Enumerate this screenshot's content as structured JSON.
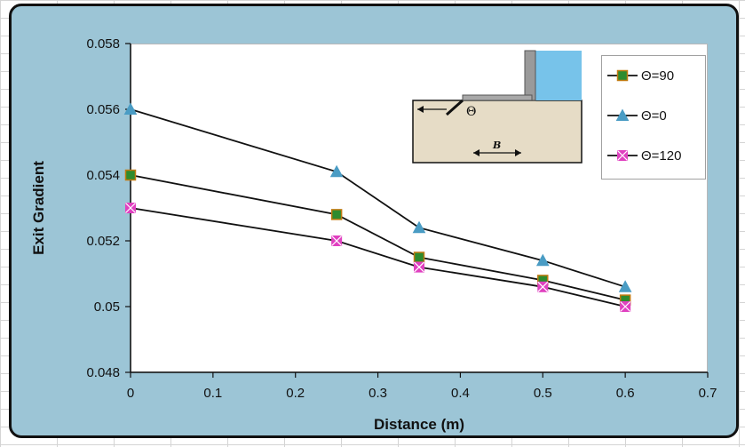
{
  "chart_data": {
    "type": "line",
    "xlabel": "Distance (m)",
    "ylabel": "Exit Gradient",
    "xlim": [
      0,
      0.7
    ],
    "ylim": [
      0.048,
      0.058
    ],
    "x_ticks": [
      "0",
      "0.1",
      "0.2",
      "0.3",
      "0.4",
      "0.5",
      "0.6",
      "0.7"
    ],
    "y_ticks": [
      "0.048",
      "0.05",
      "0.052",
      "0.054",
      "0.056",
      "0.058"
    ],
    "x": [
      0,
      0.25,
      0.35,
      0.5,
      0.6
    ],
    "series": [
      {
        "name": "Θ=90",
        "values": [
          0.054,
          0.0528,
          0.0515,
          0.0508,
          0.0502
        ],
        "marker": "square",
        "color": "#2e8b2e",
        "edge": "#c07a10"
      },
      {
        "name": "Θ=0",
        "values": [
          0.056,
          0.0541,
          0.0524,
          0.0514,
          0.0506
        ],
        "marker": "triangle",
        "color": "#4a9cc4",
        "edge": "#4a9cc4"
      },
      {
        "name": "Θ=120",
        "values": [
          0.053,
          0.052,
          0.0512,
          0.0506,
          0.05
        ],
        "marker": "square-x",
        "color": "#e040c0",
        "edge": "#e040c0"
      }
    ],
    "grid": false,
    "legend_position": "top-right",
    "inset": {
      "theta_label": "Θ",
      "b_label": "B"
    }
  }
}
